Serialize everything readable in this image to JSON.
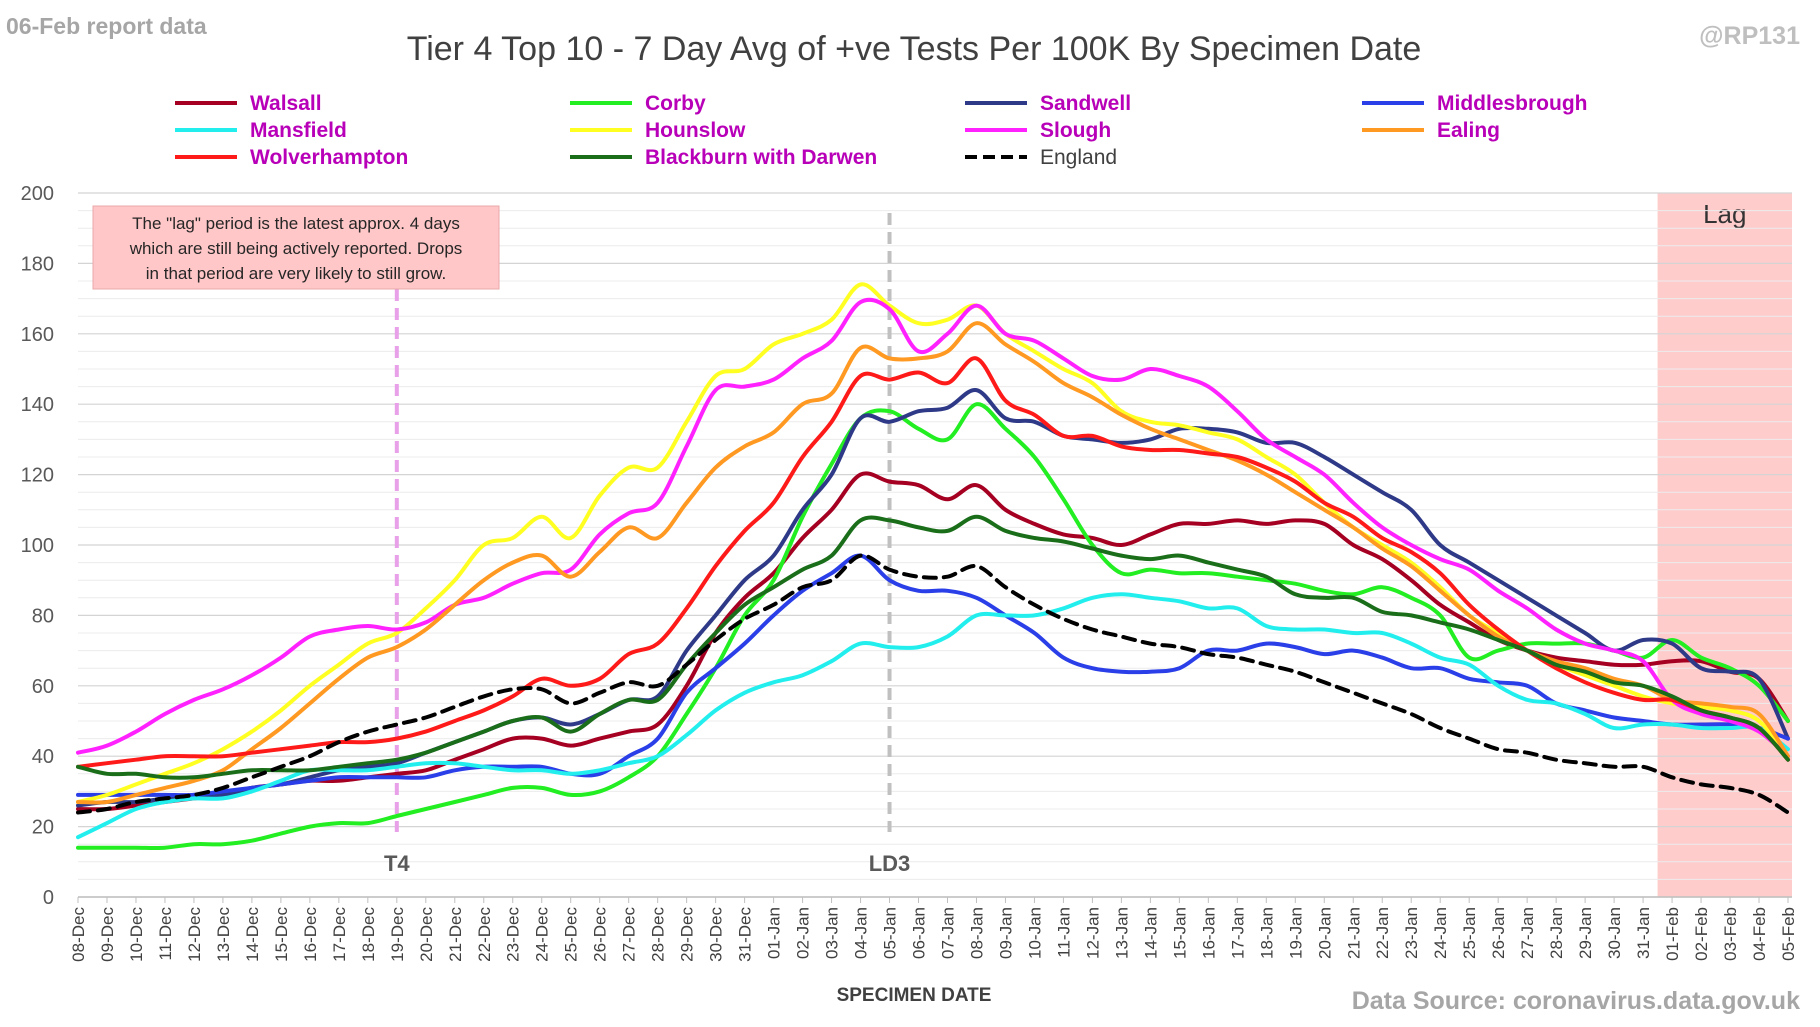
{
  "header": {
    "report_label": "06-Feb report data",
    "handle": "@RP131",
    "source": "Data Source: coronavirus.data.gov.uk"
  },
  "chart_data": {
    "type": "line",
    "title": "Tier 4 Top 10 - 7 Day Avg of +ve Tests Per 100K By Specimen Date",
    "xlabel": "SPECIMEN DATE",
    "ylabel": "",
    "ylim": [
      0,
      200
    ],
    "yticks": [
      0,
      20,
      40,
      60,
      80,
      100,
      120,
      140,
      160,
      180,
      200
    ],
    "grid": true,
    "legend_position": "top",
    "x": [
      "08-Dec",
      "09-Dec",
      "10-Dec",
      "11-Dec",
      "12-Dec",
      "13-Dec",
      "14-Dec",
      "15-Dec",
      "16-Dec",
      "17-Dec",
      "18-Dec",
      "19-Dec",
      "20-Dec",
      "21-Dec",
      "22-Dec",
      "23-Dec",
      "24-Dec",
      "25-Dec",
      "26-Dec",
      "27-Dec",
      "28-Dec",
      "29-Dec",
      "30-Dec",
      "31-Dec",
      "01-Jan",
      "02-Jan",
      "03-Jan",
      "04-Jan",
      "05-Jan",
      "06-Jan",
      "07-Jan",
      "08-Jan",
      "09-Jan",
      "10-Jan",
      "11-Jan",
      "12-Jan",
      "13-Jan",
      "14-Jan",
      "15-Jan",
      "16-Jan",
      "17-Jan",
      "18-Jan",
      "19-Jan",
      "20-Jan",
      "21-Jan",
      "22-Jan",
      "23-Jan",
      "24-Jan",
      "25-Jan",
      "26-Jan",
      "27-Jan",
      "28-Jan",
      "29-Jan",
      "30-Jan",
      "31-Jan",
      "01-Feb",
      "02-Feb",
      "03-Feb",
      "04-Feb",
      "05-Feb"
    ],
    "series": [
      {
        "name": "Walsall",
        "color": "#a50021",
        "dashed": false,
        "values": [
          25,
          25,
          26,
          27,
          28,
          29,
          31,
          32,
          33,
          33,
          34,
          35,
          36,
          39,
          42,
          45,
          45,
          43,
          45,
          47,
          49,
          60,
          75,
          85,
          92,
          102,
          110,
          120,
          118,
          117,
          113,
          117,
          110,
          106,
          103,
          102,
          100,
          103,
          106,
          106,
          107,
          106,
          107,
          106,
          100,
          96,
          90,
          83,
          78,
          73,
          70,
          68,
          67,
          66,
          66,
          67,
          67,
          64,
          62,
          50
        ]
      },
      {
        "name": "Corby",
        "color": "#22ee22",
        "dashed": false,
        "values": [
          14,
          14,
          14,
          14,
          15,
          15,
          16,
          18,
          20,
          21,
          21,
          23,
          25,
          27,
          29,
          31,
          31,
          29,
          30,
          34,
          40,
          52,
          65,
          80,
          90,
          108,
          123,
          136,
          138,
          133,
          130,
          140,
          133,
          125,
          113,
          100,
          92,
          93,
          92,
          92,
          91,
          90,
          89,
          87,
          86,
          88,
          85,
          80,
          68,
          70,
          72,
          72,
          72,
          70,
          68,
          73,
          68,
          65,
          60,
          50
        ]
      },
      {
        "name": "Sandwell",
        "color": "#2e3a87",
        "dashed": false,
        "values": [
          26,
          27,
          27,
          28,
          29,
          29,
          31,
          32,
          34,
          36,
          37,
          38,
          41,
          44,
          47,
          50,
          51,
          49,
          52,
          56,
          57,
          70,
          80,
          90,
          97,
          110,
          120,
          136,
          135,
          138,
          139,
          144,
          136,
          135,
          131,
          130,
          129,
          130,
          133,
          133,
          132,
          129,
          129,
          125,
          120,
          115,
          110,
          100,
          95,
          90,
          85,
          80,
          75,
          70,
          73,
          72,
          65,
          64,
          62,
          45
        ]
      },
      {
        "name": "Middlesbrough",
        "color": "#2a3fe8",
        "dashed": false,
        "values": [
          29,
          29,
          29,
          29,
          29,
          30,
          31,
          32,
          33,
          34,
          34,
          34,
          34,
          36,
          37,
          37,
          37,
          35,
          35,
          40,
          45,
          58,
          65,
          72,
          80,
          87,
          92,
          97,
          90,
          87,
          87,
          85,
          80,
          75,
          68,
          65,
          64,
          64,
          65,
          70,
          70,
          72,
          71,
          69,
          70,
          68,
          65,
          65,
          62,
          61,
          60,
          55,
          53,
          51,
          50,
          49,
          49,
          49,
          48,
          45
        ]
      },
      {
        "name": "Mansfield",
        "color": "#22eeee",
        "dashed": false,
        "values": [
          17,
          21,
          25,
          27,
          28,
          28,
          30,
          33,
          36,
          36,
          36,
          37,
          38,
          38,
          37,
          36,
          36,
          35,
          36,
          38,
          40,
          46,
          53,
          58,
          61,
          63,
          67,
          72,
          71,
          71,
          74,
          80,
          80,
          80,
          82,
          85,
          86,
          85,
          84,
          82,
          82,
          77,
          76,
          76,
          75,
          75,
          72,
          68,
          66,
          60,
          56,
          55,
          52,
          48,
          49,
          49,
          48,
          48,
          48,
          42
        ]
      },
      {
        "name": "Hounslow",
        "color": "#ffff22",
        "dashed": false,
        "values": [
          27,
          29,
          32,
          35,
          38,
          42,
          47,
          53,
          60,
          66,
          72,
          75,
          82,
          90,
          100,
          102,
          108,
          102,
          114,
          122,
          122,
          135,
          148,
          150,
          157,
          160,
          164,
          174,
          168,
          163,
          164,
          168,
          160,
          155,
          150,
          146,
          138,
          135,
          134,
          132,
          130,
          125,
          120,
          112,
          105,
          100,
          95,
          88,
          80,
          75,
          70,
          66,
          63,
          60,
          57,
          55,
          54,
          53,
          50,
          40
        ]
      },
      {
        "name": "Slough",
        "color": "#ff22ff",
        "dashed": false,
        "values": [
          41,
          43,
          47,
          52,
          56,
          59,
          63,
          68,
          74,
          76,
          77,
          76,
          78,
          83,
          85,
          89,
          92,
          93,
          103,
          109,
          112,
          128,
          144,
          145,
          147,
          153,
          158,
          169,
          167,
          155,
          160,
          168,
          160,
          158,
          153,
          148,
          147,
          150,
          148,
          145,
          138,
          130,
          125,
          120,
          112,
          105,
          100,
          96,
          93,
          87,
          82,
          76,
          72,
          70,
          67,
          56,
          52,
          50,
          47,
          40
        ]
      },
      {
        "name": "Ealing",
        "color": "#ff9922",
        "dashed": false,
        "values": [
          27,
          27,
          29,
          31,
          33,
          36,
          42,
          48,
          55,
          62,
          68,
          71,
          76,
          83,
          90,
          95,
          97,
          91,
          98,
          105,
          102,
          112,
          122,
          128,
          132,
          140,
          143,
          156,
          153,
          153,
          155,
          163,
          157,
          152,
          146,
          142,
          137,
          133,
          130,
          127,
          124,
          120,
          115,
          110,
          105,
          99,
          94,
          87,
          80,
          74,
          70,
          67,
          65,
          62,
          60,
          56,
          55,
          54,
          52,
          40
        ]
      },
      {
        "name": "Wolverhampton",
        "color": "#ff1a1a",
        "dashed": false,
        "values": [
          37,
          38,
          39,
          40,
          40,
          40,
          41,
          42,
          43,
          44,
          44,
          45,
          47,
          50,
          53,
          57,
          62,
          60,
          62,
          69,
          72,
          82,
          94,
          104,
          112,
          125,
          135,
          148,
          147,
          149,
          146,
          153,
          141,
          137,
          131,
          131,
          128,
          127,
          127,
          126,
          125,
          122,
          118,
          112,
          108,
          102,
          98,
          92,
          83,
          76,
          70,
          65,
          61,
          58,
          56,
          56,
          53,
          51,
          48,
          39
        ]
      },
      {
        "name": "Blackburn with Darwen",
        "color": "#1a6e1a",
        "dashed": false,
        "values": [
          37,
          35,
          35,
          34,
          34,
          35,
          36,
          36,
          36,
          37,
          38,
          39,
          41,
          44,
          47,
          50,
          51,
          47,
          52,
          56,
          56,
          66,
          75,
          83,
          88,
          93,
          97,
          107,
          107,
          105,
          104,
          108,
          104,
          102,
          101,
          99,
          97,
          96,
          97,
          95,
          93,
          91,
          86,
          85,
          85,
          81,
          80,
          78,
          76,
          73,
          70,
          66,
          64,
          61,
          60,
          57,
          53,
          51,
          48,
          39
        ]
      },
      {
        "name": "England",
        "color": "#000000",
        "dashed": true,
        "values": [
          24,
          25,
          27,
          28,
          29,
          31,
          34,
          37,
          40,
          44,
          47,
          49,
          51,
          54,
          57,
          59,
          59,
          55,
          58,
          61,
          60,
          66,
          73,
          79,
          83,
          88,
          90,
          97,
          93,
          91,
          91,
          94,
          88,
          83,
          79,
          76,
          74,
          72,
          71,
          69,
          68,
          66,
          64,
          61,
          58,
          55,
          52,
          48,
          45,
          42,
          41,
          39,
          38,
          37,
          37,
          34,
          32,
          31,
          29,
          24
        ]
      }
    ],
    "annotations": {
      "lag_note": "The \"lag\" period is the latest approx. 4 days which are still being actively reported.  Drops in that period are very likely to still grow.",
      "lag_label": "Lag",
      "lag_start": "01-Feb",
      "markers": [
        {
          "label": "T4",
          "date": "19-Dec",
          "color": "#e8a0e8"
        },
        {
          "label": "LD3",
          "date": "05-Jan",
          "color": "#c0c0c0"
        }
      ]
    }
  }
}
